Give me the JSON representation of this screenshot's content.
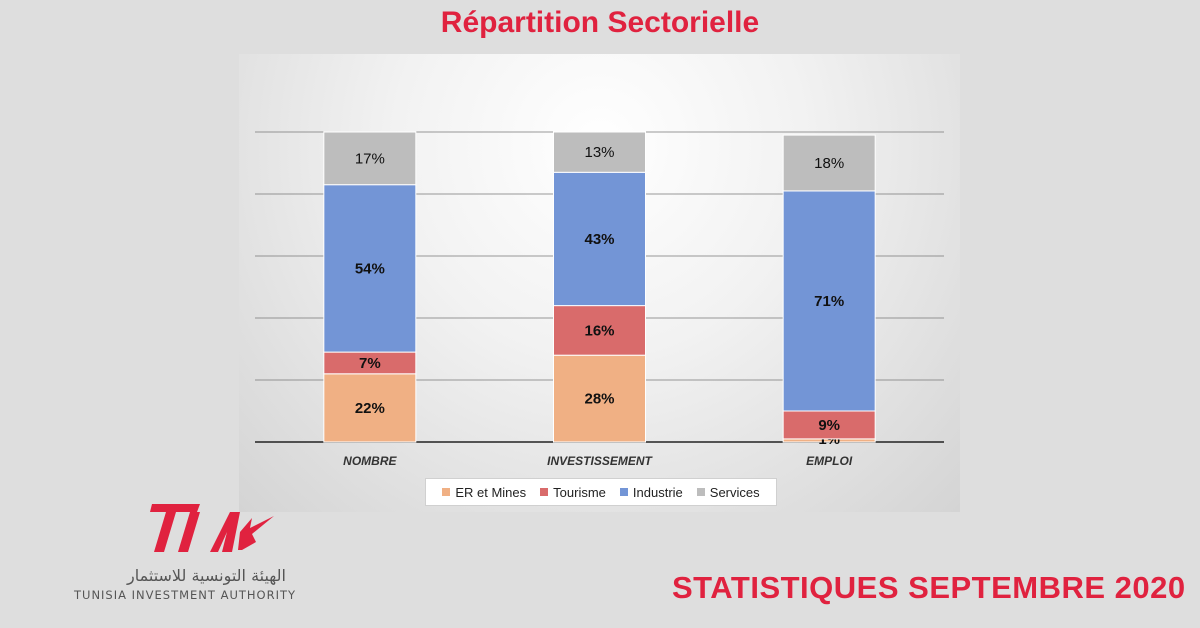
{
  "title": "Répartition Sectorielle",
  "footer": "STATISTIQUES SEPTEMBRE 2020",
  "logo": {
    "arabic": "الهيئة التونسية للاستثمار",
    "english": "TUNISIA INVESTMENT AUTHORITY"
  },
  "colors": {
    "accent": "#e0223f",
    "er_mines": "#f0b084",
    "tourisme": "#d96b6b",
    "industrie": "#7395d6",
    "services": "#bdbdbd"
  },
  "chart_data": {
    "type": "bar",
    "stacked": true,
    "percent_stacked": true,
    "categories": [
      "NOMBRE",
      "INVESTISSEMENT",
      "EMPLOI"
    ],
    "series": [
      {
        "name": "ER et Mines",
        "values": [
          22,
          28,
          1
        ],
        "labels": [
          "22%",
          "28%",
          "1%"
        ],
        "color": "#f0b084"
      },
      {
        "name": "Tourisme",
        "values": [
          7,
          16,
          9
        ],
        "labels": [
          "7%",
          "16%",
          "9%"
        ],
        "color": "#d96b6b"
      },
      {
        "name": "Industrie",
        "values": [
          54,
          43,
          71
        ],
        "labels": [
          "54%",
          "43%",
          "71%"
        ],
        "color": "#7395d6"
      },
      {
        "name": "Services",
        "values": [
          17,
          13,
          18
        ],
        "labels": [
          "17%",
          "13%",
          "18%"
        ],
        "color": "#bdbdbd"
      }
    ],
    "ylim": [
      0,
      100
    ],
    "grid": true,
    "legend": "bottom"
  }
}
